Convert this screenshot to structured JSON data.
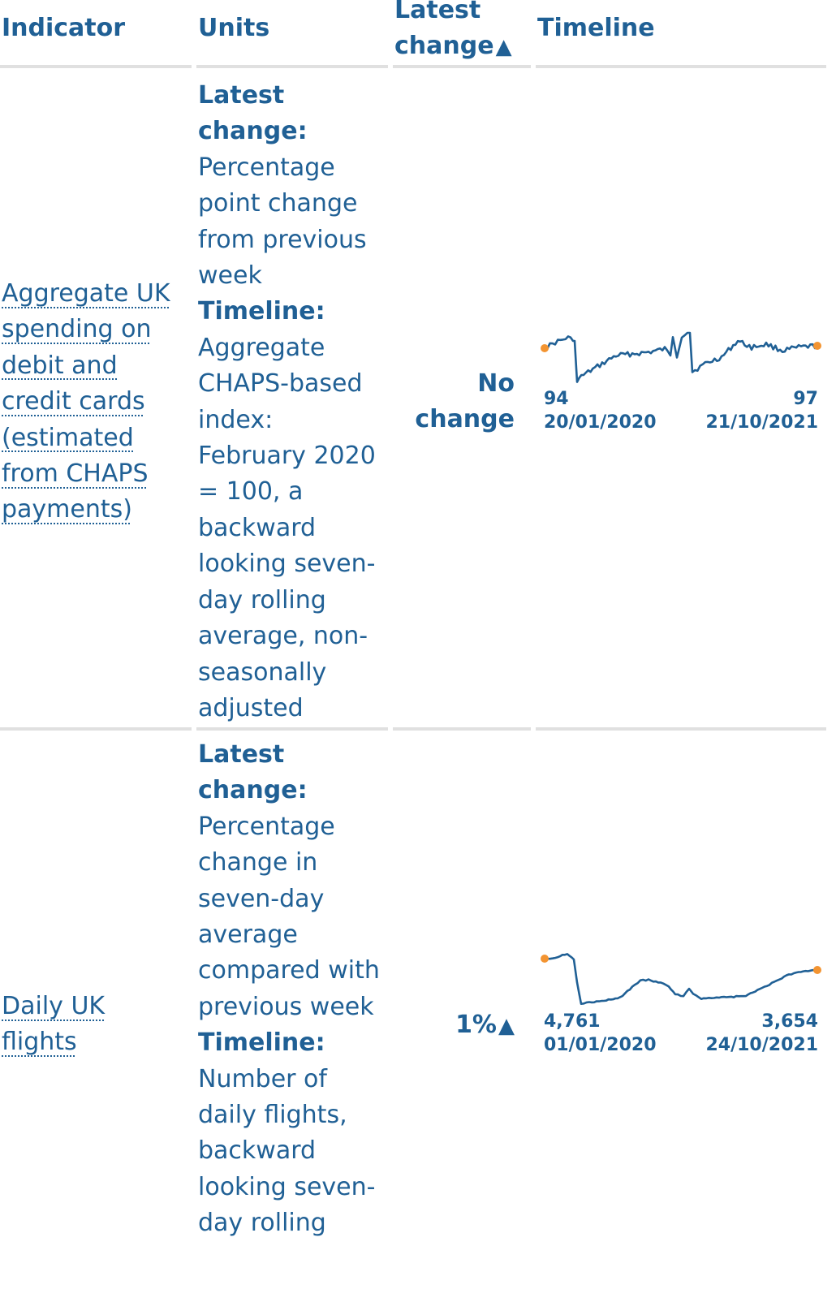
{
  "table": {
    "headers": {
      "indicator": "Indicator",
      "units": "Units",
      "latest_change_line1": "Latest",
      "latest_change_line2": "change",
      "latest_change_sort_icon": "▲",
      "timeline": "Timeline"
    },
    "rows": [
      {
        "indicator": "Aggregate UK spending on debit and credit cards (estimated from CHAPS payments)",
        "units_latest_label": "Latest change:",
        "units_latest_text": "Percentage point change from previous week",
        "units_timeline_label": "Timeline:",
        "units_timeline_text": "Aggregate CHAPS-based index: February 2020 = 100, a backward looking seven-day rolling average, non-seasonally adjusted",
        "latest_change": "No change",
        "timeline": {
          "start_value": "94",
          "start_date": "20/01/2020",
          "end_value": "97",
          "end_date": "21/10/2021"
        }
      },
      {
        "indicator": "Daily UK flights",
        "units_latest_label": "Latest change:",
        "units_latest_text": "Percentage change in seven-day average compared with previous week",
        "units_timeline_label": "Timeline:",
        "units_timeline_text": "Number of daily flights, backward looking seven-day rolling",
        "latest_change": "1%",
        "latest_change_icon": "▲",
        "timeline": {
          "start_value": "4,761",
          "start_date": "01/01/2020",
          "end_value": "3,654",
          "end_date": "24/10/2021"
        }
      }
    ]
  },
  "colors": {
    "text": "#206095",
    "line": "#206095",
    "endpoint": "#f39431",
    "rule": "#e0e0e0"
  },
  "icons": {
    "sort": "triangle-up-icon",
    "increase": "triangle-up-icon"
  }
}
